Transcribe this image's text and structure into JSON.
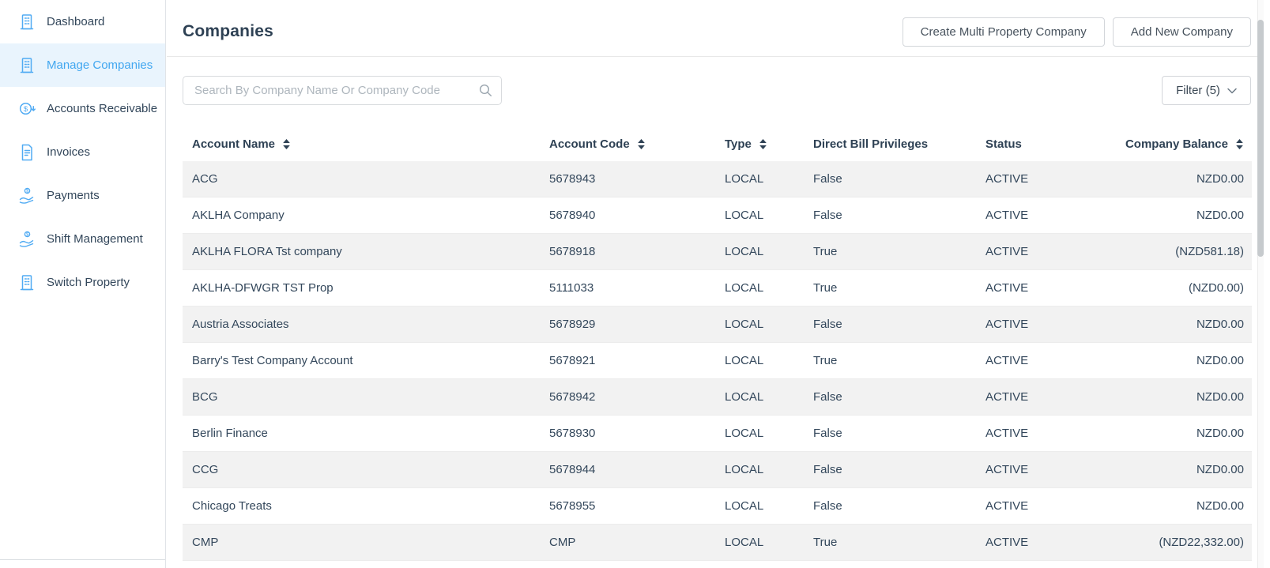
{
  "colors": {
    "accent_blue": "#42a7f0",
    "icon_blue": "#51abf3",
    "navy_text": "#33475b",
    "selected_item_bg": "#e9f4fd",
    "row_alt_bg": "#f2f2f2"
  },
  "sidebar": {
    "items": [
      {
        "label": "Dashboard",
        "icon": "building-icon",
        "selected": false
      },
      {
        "label": "Manage Companies",
        "icon": "building-icon",
        "selected": true
      },
      {
        "label": "Accounts Receivable",
        "icon": "dollar-circle-arrow-icon",
        "selected": false
      },
      {
        "label": "Invoices",
        "icon": "invoice-icon",
        "selected": false
      },
      {
        "label": "Payments",
        "icon": "hand-coin-icon",
        "selected": false
      },
      {
        "label": "Shift Management",
        "icon": "hand-coin-icon",
        "selected": false
      },
      {
        "label": "Switch Property",
        "icon": "building-icon",
        "selected": false
      }
    ]
  },
  "header": {
    "title": "Companies",
    "create_multi_button": "Create Multi Property Company",
    "add_new_button": "Add New Company"
  },
  "toolbar": {
    "search_placeholder": "Search By Company Name Or Company Code",
    "search_value": "",
    "filter_label": "Filter (5)"
  },
  "table": {
    "columns": [
      {
        "label": "Account Name",
        "sortable": true,
        "align": "left"
      },
      {
        "label": "Account Code",
        "sortable": true,
        "align": "left"
      },
      {
        "label": "Type",
        "sortable": true,
        "align": "left"
      },
      {
        "label": "Direct Bill Privileges",
        "sortable": false,
        "align": "left"
      },
      {
        "label": "Status",
        "sortable": false,
        "align": "left"
      },
      {
        "label": "Company Balance",
        "sortable": true,
        "align": "right"
      }
    ],
    "rows": [
      [
        "ACG",
        "5678943",
        "LOCAL",
        "False",
        "ACTIVE",
        "NZD0.00"
      ],
      [
        "AKLHA Company",
        "5678940",
        "LOCAL",
        "False",
        "ACTIVE",
        "NZD0.00"
      ],
      [
        "AKLHA FLORA Tst company",
        "5678918",
        "LOCAL",
        "True",
        "ACTIVE",
        "(NZD581.18)"
      ],
      [
        "AKLHA-DFWGR TST Prop",
        "5111033",
        "LOCAL",
        "True",
        "ACTIVE",
        "(NZD0.00)"
      ],
      [
        "Austria Associates",
        "5678929",
        "LOCAL",
        "False",
        "ACTIVE",
        "NZD0.00"
      ],
      [
        "Barry's Test Company Account",
        "5678921",
        "LOCAL",
        "True",
        "ACTIVE",
        "NZD0.00"
      ],
      [
        "BCG",
        "5678942",
        "LOCAL",
        "False",
        "ACTIVE",
        "NZD0.00"
      ],
      [
        "Berlin Finance",
        "5678930",
        "LOCAL",
        "False",
        "ACTIVE",
        "NZD0.00"
      ],
      [
        "CCG",
        "5678944",
        "LOCAL",
        "False",
        "ACTIVE",
        "NZD0.00"
      ],
      [
        "Chicago Treats",
        "5678955",
        "LOCAL",
        "False",
        "ACTIVE",
        "NZD0.00"
      ],
      [
        "CMP",
        "CMP",
        "LOCAL",
        "True",
        "ACTIVE",
        "(NZD22,332.00)"
      ]
    ]
  }
}
